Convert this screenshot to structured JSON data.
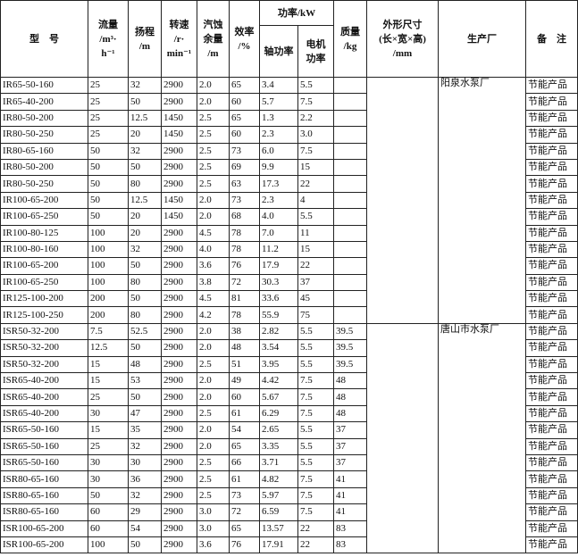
{
  "header": [
    {
      "lines": [
        "型　号"
      ]
    },
    {
      "lines": [
        "流量",
        "/m³·",
        "h⁻¹"
      ]
    },
    {
      "lines": [
        "扬程",
        "/m"
      ]
    },
    {
      "lines": [
        "转速",
        "/r·",
        "min⁻¹"
      ]
    },
    {
      "lines": [
        "汽蚀",
        "余量",
        "/m"
      ]
    },
    {
      "lines": [
        "效率",
        "/%"
      ]
    },
    {
      "lines": [
        "功率/kW"
      ],
      "children": [
        {
          "lines": [
            "轴功率"
          ]
        },
        {
          "lines": [
            "电机",
            "功率"
          ]
        }
      ]
    },
    {
      "lines": [
        "质量",
        "/kg"
      ]
    },
    {
      "lines": [
        "外形尺寸",
        "(长×宽×高)",
        "/mm"
      ]
    },
    {
      "lines": [
        "生产厂"
      ]
    },
    {
      "lines": [
        "备　注"
      ]
    }
  ],
  "groups": [
    {
      "factory": "阳泉水泵厂",
      "rows": [
        [
          "IR65-50-160",
          "25",
          "32",
          "2900",
          "2.0",
          "65",
          "3.4",
          "5.5",
          null,
          "节能产品"
        ],
        [
          "IR65-40-200",
          "25",
          "50",
          "2900",
          "2.0",
          "60",
          "5.7",
          "7.5",
          null,
          "节能产品"
        ],
        [
          "IR80-50-200",
          "25",
          "12.5",
          "1450",
          "2.5",
          "65",
          "1.3",
          "2.2",
          null,
          "节能产品"
        ],
        [
          "IR80-50-250",
          "25",
          "20",
          "1450",
          "2.5",
          "60",
          "2.3",
          "3.0",
          null,
          "节能产品"
        ],
        [
          "IR80-65-160",
          "50",
          "32",
          "2900",
          "2.5",
          "73",
          "6.0",
          "7.5",
          null,
          "节能产品"
        ],
        [
          "IR80-50-200",
          "50",
          "50",
          "2900",
          "2.5",
          "69",
          "9.9",
          "15",
          null,
          "节能产品"
        ],
        [
          "IR80-50-250",
          "50",
          "80",
          "2900",
          "2.5",
          "63",
          "17.3",
          "22",
          null,
          "节能产品"
        ],
        [
          "IR100-65-200",
          "50",
          "12.5",
          "1450",
          "2.0",
          "73",
          "2.3",
          "4",
          null,
          "节能产品"
        ],
        [
          "IR100-65-250",
          "50",
          "20",
          "1450",
          "2.0",
          "68",
          "4.0",
          "5.5",
          null,
          "节能产品"
        ],
        [
          "IR100-80-125",
          "100",
          "20",
          "2900",
          "4.5",
          "78",
          "7.0",
          "11",
          null,
          "节能产品"
        ],
        [
          "IR100-80-160",
          "100",
          "32",
          "2900",
          "4.0",
          "78",
          "11.2",
          "15",
          null,
          "节能产品"
        ],
        [
          "IR100-65-200",
          "100",
          "50",
          "2900",
          "3.6",
          "76",
          "17.9",
          "22",
          null,
          "节能产品"
        ],
        [
          "IR100-65-250",
          "100",
          "80",
          "2900",
          "3.8",
          "72",
          "30.3",
          "37",
          null,
          "节能产品"
        ],
        [
          "IR125-100-200",
          "200",
          "50",
          "2900",
          "4.5",
          "81",
          "33.6",
          "45",
          null,
          "节能产品"
        ],
        [
          "IR125-100-250",
          "200",
          "80",
          "2900",
          "4.2",
          "78",
          "55.9",
          "75",
          null,
          "节能产品"
        ]
      ]
    },
    {
      "factory": "唐山市水泵厂",
      "rows": [
        [
          "ISR50-32-200",
          "7.5",
          "52.5",
          "2900",
          "2.0",
          "38",
          "2.82",
          "5.5",
          "39.5",
          "节能产品"
        ],
        [
          "ISR50-32-200",
          "12.5",
          "50",
          "2900",
          "2.0",
          "48",
          "3.54",
          "5.5",
          "39.5",
          "节能产品"
        ],
        [
          "ISR50-32-200",
          "15",
          "48",
          "2900",
          "2.5",
          "51",
          "3.95",
          "5.5",
          "39.5",
          "节能产品"
        ],
        [
          "ISR65-40-200",
          "15",
          "53",
          "2900",
          "2.0",
          "49",
          "4.42",
          "7.5",
          "48",
          "节能产品"
        ],
        [
          "ISR65-40-200",
          "25",
          "50",
          "2900",
          "2.0",
          "60",
          "5.67",
          "7.5",
          "48",
          "节能产品"
        ],
        [
          "ISR65-40-200",
          "30",
          "47",
          "2900",
          "2.5",
          "61",
          "6.29",
          "7.5",
          "48",
          "节能产品"
        ],
        [
          "ISR65-50-160",
          "15",
          "35",
          "2900",
          "2.0",
          "54",
          "2.65",
          "5.5",
          "37",
          "节能产品"
        ],
        [
          "ISR65-50-160",
          "25",
          "32",
          "2900",
          "2.0",
          "65",
          "3.35",
          "5.5",
          "37",
          "节能产品"
        ],
        [
          "ISR65-50-160",
          "30",
          "30",
          "2900",
          "2.5",
          "66",
          "3.71",
          "5.5",
          "37",
          "节能产品"
        ],
        [
          "ISR80-65-160",
          "30",
          "36",
          "2900",
          "2.5",
          "61",
          "4.82",
          "7.5",
          "41",
          "节能产品"
        ],
        [
          "ISR80-65-160",
          "50",
          "32",
          "2900",
          "2.5",
          "73",
          "5.97",
          "7.5",
          "41",
          "节能产品"
        ],
        [
          "ISR80-65-160",
          "60",
          "29",
          "2900",
          "3.0",
          "72",
          "6.59",
          "7.5",
          "41",
          "节能产品"
        ],
        [
          "ISR100-65-200",
          "60",
          "54",
          "2900",
          "3.0",
          "65",
          "13.57",
          "22",
          "83",
          "节能产品"
        ],
        [
          "ISR100-65-200",
          "100",
          "50",
          "2900",
          "3.6",
          "76",
          "17.91",
          "22",
          "83",
          "节能产品"
        ]
      ]
    }
  ]
}
